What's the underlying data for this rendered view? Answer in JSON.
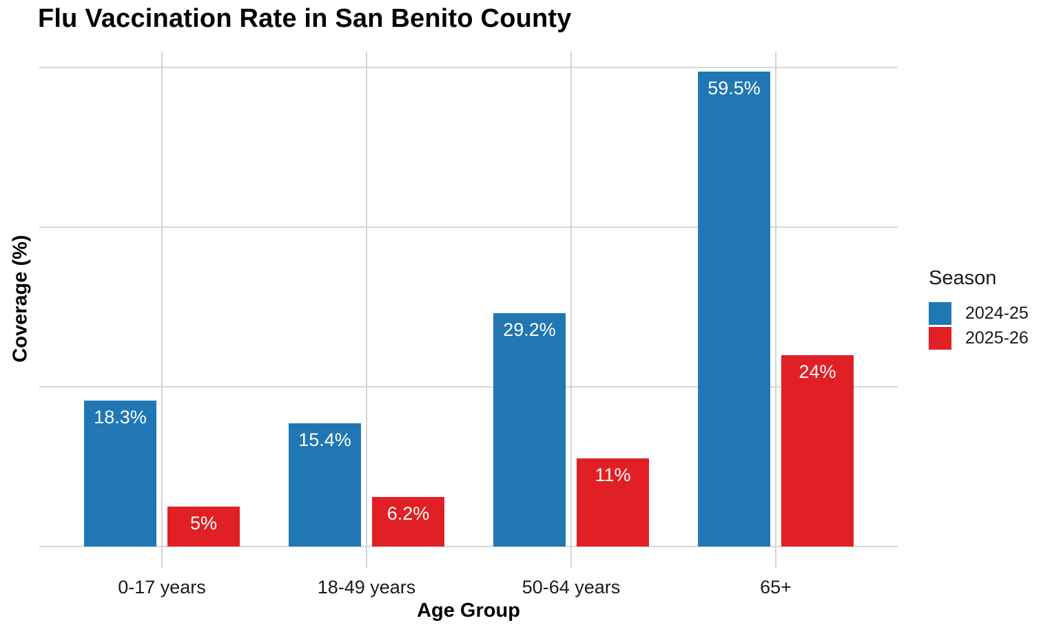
{
  "chart_data": {
    "type": "bar",
    "title": "Flu Vaccination Rate in San Benito County",
    "xlabel": "Age Group",
    "ylabel": "Coverage (%)",
    "categories": [
      "0-17 years",
      "18-49 years",
      "50-64 years",
      "65+"
    ],
    "series": [
      {
        "name": "2024-25",
        "color": "#2077b4",
        "values": [
          18.3,
          15.4,
          29.2,
          59.5
        ],
        "labels": [
          "18.3%",
          "15.4%",
          "29.2%",
          "59.5%"
        ]
      },
      {
        "name": "2025-26",
        "color": "#e02024",
        "values": [
          5,
          6.2,
          11,
          24
        ],
        "labels": [
          "5%",
          "6.2%",
          "11%",
          "24%"
        ]
      }
    ],
    "ylim": [
      0,
      62
    ],
    "y_gridlines": [
      0,
      20,
      40,
      60
    ],
    "y_tick_labels_visible": false,
    "grid": "on",
    "legend": {
      "title": "Season",
      "position": "right"
    },
    "bar_label_color": "#ffffff"
  }
}
